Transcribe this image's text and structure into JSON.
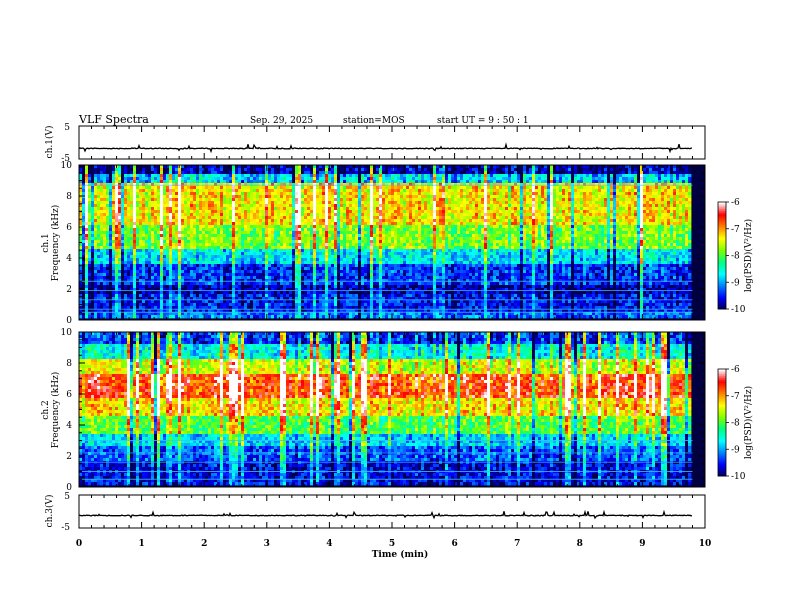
{
  "header": {
    "title": "VLF Spectra",
    "date": "Sep. 29, 2025",
    "station": "station=MOS",
    "start": "start UT =  9 : 50 : 1"
  },
  "chart_data": [
    {
      "type": "line",
      "id": "ch1-waveform",
      "ylabel": "ch.1(V)",
      "ylim": [
        -5,
        5
      ],
      "ytick_labels": [
        "5",
        "-5"
      ],
      "xlim": [
        0,
        10
      ],
      "baseline": -1.8
    },
    {
      "type": "heatmap",
      "id": "ch1-spectrogram",
      "ylabel": "ch.1 Frequency (kHz)",
      "ylim": [
        0,
        10
      ],
      "ytick_labels": [
        "0",
        "2",
        "4",
        "6",
        "8",
        "10"
      ],
      "xlim": [
        0,
        10
      ],
      "data_end_min": 9.8,
      "colorbar": {
        "label": "log(PSD)(V²/Hz)",
        "range": [
          -10,
          -6
        ],
        "tick_labels": [
          "-6",
          "-7",
          "-8",
          "-9",
          "-10"
        ]
      },
      "bands": [
        {
          "from_khz": 0.0,
          "to_khz": 0.4,
          "level": 0.2
        },
        {
          "from_khz": 0.4,
          "to_khz": 1.5,
          "level": 0.12
        },
        {
          "from_khz": 1.5,
          "to_khz": 2.2,
          "level": 0.05
        },
        {
          "from_khz": 2.2,
          "to_khz": 3.6,
          "level": 0.15
        },
        {
          "from_khz": 3.6,
          "to_khz": 4.5,
          "level": 0.32
        },
        {
          "from_khz": 4.5,
          "to_khz": 6.0,
          "level": 0.55
        },
        {
          "from_khz": 6.0,
          "to_khz": 8.8,
          "level": 0.68
        },
        {
          "from_khz": 8.8,
          "to_khz": 9.4,
          "level": 0.3
        },
        {
          "from_khz": 9.4,
          "to_khz": 10.0,
          "level": 0.05
        }
      ],
      "lines_khz": [
        0.5,
        0.7,
        1.3,
        1.9,
        2.5,
        8.7
      ]
    },
    {
      "type": "heatmap",
      "id": "ch2-spectrogram",
      "ylabel": "ch.2 Frequency (kHz)",
      "ylim": [
        0,
        10
      ],
      "ytick_labels": [
        "0",
        "2",
        "4",
        "6",
        "8",
        "10"
      ],
      "xlim": [
        0,
        10
      ],
      "data_end_min": 9.8,
      "colorbar": {
        "label": "log(PSD)(V²/Hz)",
        "range": [
          -10,
          -6
        ],
        "tick_labels": [
          "-6",
          "-7",
          "-8",
          "-9",
          "-10"
        ]
      },
      "bands": [
        {
          "from_khz": 0.0,
          "to_khz": 1.6,
          "level": 0.1
        },
        {
          "from_khz": 1.6,
          "to_khz": 2.6,
          "level": 0.18
        },
        {
          "from_khz": 2.6,
          "to_khz": 3.4,
          "level": 0.3
        },
        {
          "from_khz": 3.4,
          "to_khz": 4.6,
          "level": 0.5
        },
        {
          "from_khz": 4.6,
          "to_khz": 5.6,
          "level": 0.68
        },
        {
          "from_khz": 5.6,
          "to_khz": 7.2,
          "level": 0.84
        },
        {
          "from_khz": 7.2,
          "to_khz": 8.2,
          "level": 0.62
        },
        {
          "from_khz": 8.2,
          "to_khz": 9.2,
          "level": 0.35
        },
        {
          "from_khz": 9.2,
          "to_khz": 10.0,
          "level": 0.15
        }
      ],
      "lines_khz": [
        0.5,
        1.0,
        1.6,
        2.2,
        3.0
      ]
    },
    {
      "type": "line",
      "id": "ch3-waveform",
      "ylabel": "ch.3(V)",
      "ylim": [
        -5,
        5
      ],
      "ytick_labels": [
        "5",
        "-5"
      ],
      "xlim": [
        0,
        10
      ],
      "baseline": -1.2
    }
  ],
  "x_axis": {
    "label": "Time (min)",
    "tick_labels": [
      "0",
      "1",
      "2",
      "3",
      "4",
      "5",
      "6",
      "7",
      "8",
      "9",
      "10"
    ]
  },
  "colors": {
    "colormap": [
      "#000050",
      "#0000ff",
      "#0080ff",
      "#00ffff",
      "#00ff80",
      "#80ff00",
      "#ffff00",
      "#ff8000",
      "#ff0000",
      "#ffffff"
    ]
  }
}
